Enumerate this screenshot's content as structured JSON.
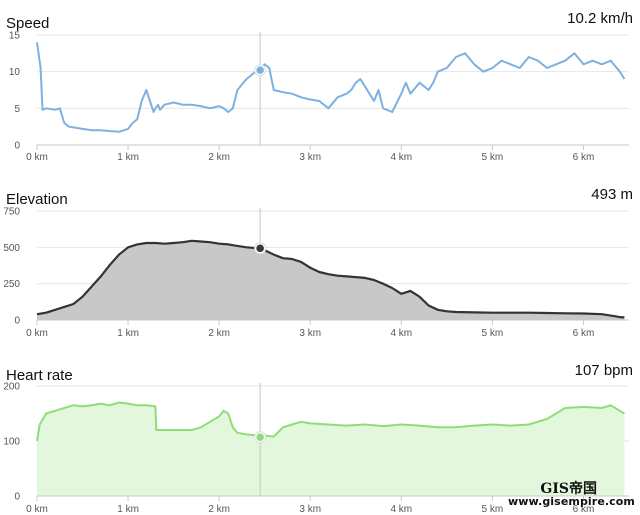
{
  "chart_data": [
    {
      "type": "line",
      "title": "Speed",
      "readout": "10.2 km/h",
      "color": "#7eb0e0",
      "fill": "none",
      "marker_color": "#7eb0e0",
      "ylim": [
        0,
        15
      ],
      "yticks": [
        "0",
        "5",
        "10",
        "15"
      ],
      "xlim": [
        0,
        6.5
      ],
      "xticks": [
        "0 km",
        "1 km",
        "2 km",
        "3 km",
        "4 km",
        "5 km",
        "6 km"
      ],
      "cursor_x": 2.45,
      "series": [
        {
          "x": [
            0,
            0.04,
            0.06,
            0.1,
            0.2,
            0.25,
            0.3,
            0.35,
            0.5,
            0.6,
            0.7,
            0.8,
            0.9,
            1.0,
            1.05,
            1.1,
            1.15,
            1.2,
            1.28,
            1.3,
            1.33,
            1.35,
            1.4,
            1.5,
            1.6,
            1.7,
            1.8,
            1.9,
            2.0,
            2.05,
            2.1,
            2.15,
            2.2,
            2.3,
            2.4,
            2.45,
            2.5,
            2.55,
            2.6,
            2.7,
            2.8,
            2.9,
            3.0,
            3.1,
            3.2,
            3.3,
            3.4,
            3.45,
            3.5,
            3.55,
            3.6,
            3.7,
            3.75,
            3.8,
            3.9,
            4.0,
            4.05,
            4.1,
            4.2,
            4.3,
            4.35,
            4.4,
            4.5,
            4.6,
            4.7,
            4.8,
            4.9,
            5.0,
            5.1,
            5.2,
            5.3,
            5.4,
            5.5,
            5.6,
            5.7,
            5.8,
            5.9,
            6.0,
            6.1,
            6.2,
            6.3,
            6.4,
            6.45
          ],
          "y": [
            14,
            10.5,
            4.8,
            5,
            4.8,
            5,
            3,
            2.5,
            2.2,
            2,
            2,
            1.9,
            1.8,
            2.2,
            3,
            3.5,
            6,
            7.5,
            4.5,
            5,
            5.5,
            4.8,
            5.5,
            5.8,
            5.5,
            5.5,
            5.3,
            5,
            5.3,
            5,
            4.5,
            5,
            7.5,
            9,
            10,
            10.2,
            11,
            10.5,
            7.5,
            7.2,
            7,
            6.5,
            6.2,
            6,
            5,
            6.5,
            7,
            7.5,
            8.5,
            9,
            8,
            6,
            7.5,
            5,
            4.5,
            7,
            8.5,
            7,
            8.5,
            7.5,
            8.5,
            10,
            10.5,
            12,
            12.5,
            11,
            10,
            10.5,
            11.5,
            11,
            10.5,
            12,
            11.5,
            10.5,
            11,
            11.5,
            12.5,
            11,
            11.5,
            11,
            11.5,
            10,
            9
          ]
        }
      ],
      "marker": {
        "x": 2.45,
        "y": 10.2
      }
    },
    {
      "type": "area",
      "title": "Elevation",
      "readout": "493 m",
      "color": "#333333",
      "fill": "#c8c8c8",
      "marker_color": "#3a3a3a",
      "ylim": [
        0,
        750
      ],
      "yticks": [
        "0",
        "250",
        "500",
        "750"
      ],
      "xlim": [
        0,
        6.5
      ],
      "xticks": [
        "0 km",
        "1 km",
        "2 km",
        "3 km",
        "4 km",
        "5 km",
        "6 km"
      ],
      "cursor_x": 2.45,
      "series": [
        {
          "x": [
            0,
            0.1,
            0.2,
            0.3,
            0.4,
            0.5,
            0.6,
            0.7,
            0.8,
            0.9,
            1.0,
            1.1,
            1.2,
            1.3,
            1.4,
            1.5,
            1.6,
            1.7,
            1.8,
            1.9,
            2.0,
            2.1,
            2.2,
            2.3,
            2.4,
            2.45,
            2.5,
            2.6,
            2.7,
            2.8,
            2.9,
            3.0,
            3.1,
            3.2,
            3.3,
            3.4,
            3.5,
            3.6,
            3.7,
            3.8,
            3.9,
            4.0,
            4.1,
            4.2,
            4.3,
            4.4,
            4.5,
            4.6,
            4.8,
            5.0,
            5.2,
            5.4,
            5.6,
            5.8,
            6.0,
            6.2,
            6.3,
            6.4,
            6.45
          ],
          "y": [
            40,
            50,
            70,
            90,
            110,
            160,
            230,
            300,
            380,
            450,
            500,
            520,
            530,
            530,
            525,
            530,
            535,
            545,
            540,
            535,
            525,
            520,
            510,
            500,
            495,
            493,
            480,
            450,
            425,
            420,
            400,
            360,
            330,
            315,
            305,
            300,
            295,
            290,
            275,
            250,
            220,
            180,
            200,
            160,
            100,
            70,
            60,
            55,
            52,
            50,
            50,
            50,
            48,
            46,
            45,
            40,
            30,
            20,
            18
          ]
        }
      ],
      "marker": {
        "x": 2.45,
        "y": 493
      }
    },
    {
      "type": "area",
      "title": "Heart rate",
      "readout": "107 bpm",
      "color": "#8fdd78",
      "fill": "#e2f7dc",
      "marker_color": "#8fdd78",
      "ylim": [
        0,
        200
      ],
      "yticks": [
        "0",
        "100",
        "200"
      ],
      "xlim": [
        0,
        6.5
      ],
      "xticks": [
        "0 km",
        "1 km",
        "2 km",
        "3 km",
        "4 km",
        "5 km",
        "6 km"
      ],
      "cursor_x": 2.45,
      "series": [
        {
          "x": [
            0,
            0.03,
            0.1,
            0.2,
            0.3,
            0.4,
            0.5,
            0.6,
            0.7,
            0.8,
            0.9,
            1.0,
            1.1,
            1.2,
            1.3,
            1.31,
            1.4,
            1.5,
            1.6,
            1.7,
            1.8,
            1.9,
            2.0,
            2.05,
            2.1,
            2.15,
            2.2,
            2.3,
            2.4,
            2.45,
            2.5,
            2.6,
            2.7,
            2.8,
            2.9,
            3.0,
            3.2,
            3.4,
            3.6,
            3.8,
            4.0,
            4.2,
            4.4,
            4.6,
            4.8,
            5.0,
            5.2,
            5.4,
            5.6,
            5.8,
            6.0,
            6.2,
            6.3,
            6.4,
            6.45
          ],
          "y": [
            100,
            130,
            150,
            155,
            160,
            165,
            163,
            165,
            168,
            165,
            170,
            168,
            165,
            165,
            163,
            120,
            120,
            120,
            120,
            120,
            125,
            135,
            145,
            155,
            150,
            125,
            115,
            112,
            110,
            107,
            110,
            108,
            125,
            130,
            135,
            132,
            130,
            128,
            130,
            127,
            130,
            128,
            125,
            125,
            128,
            130,
            128,
            130,
            140,
            160,
            162,
            160,
            165,
            155,
            150
          ]
        }
      ],
      "marker": {
        "x": 2.45,
        "y": 107
      }
    }
  ],
  "watermark": {
    "line1": "GIS帝国",
    "line2": "www.gisempire.com"
  }
}
